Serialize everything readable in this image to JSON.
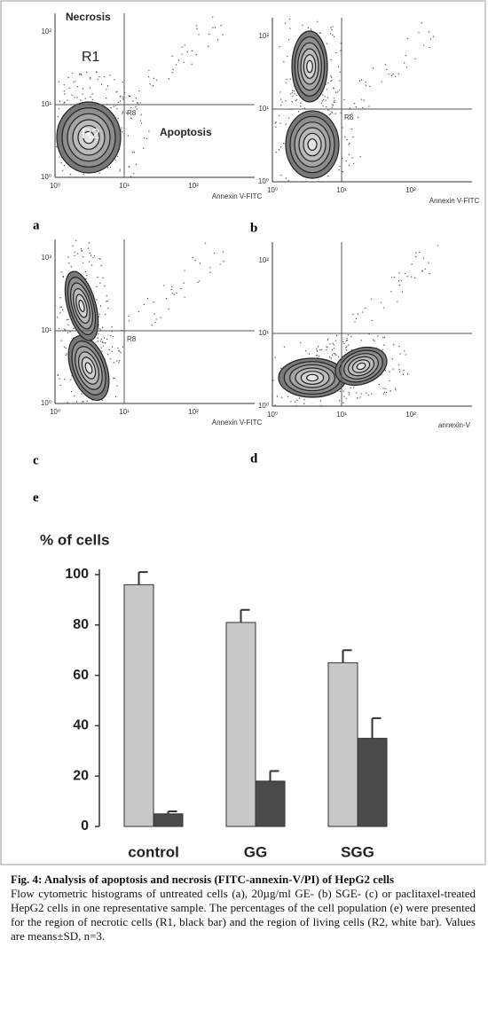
{
  "panels": [
    {
      "letter": "a",
      "x_label": "Annexin V-FITC",
      "gate": "R8",
      "x_ticks": [
        "10⁰",
        "10¹",
        "10²"
      ],
      "y_ticks": [
        "10⁰",
        "10¹",
        "10²"
      ],
      "labels": [
        "Necrosis",
        "R1",
        "R2",
        "Apoptosis"
      ]
    },
    {
      "letter": "b",
      "x_label": "Annexin V-FITC",
      "gate": "R8",
      "x_ticks": [
        "10⁰",
        "10¹",
        "10²"
      ],
      "y_ticks": [
        "10⁰",
        "10¹",
        "10²"
      ]
    },
    {
      "letter": "c",
      "x_label": "Annexin V-FITC",
      "gate": "R8",
      "x_ticks": [
        "10⁰",
        "10¹",
        "10²"
      ],
      "y_ticks": [
        "10⁰",
        "10¹",
        "10²"
      ]
    },
    {
      "letter": "d",
      "x_label": "annexin-V",
      "x_ticks": [
        "10⁰",
        "10¹",
        "10²"
      ],
      "y_ticks": [
        "10⁰",
        "10¹",
        "10²"
      ]
    }
  ],
  "chart_letter": "e",
  "chart_data": {
    "type": "bar",
    "y_label": "% of cells",
    "categories": [
      "control",
      "GG",
      "SGG"
    ],
    "series": [
      {
        "color": "#c8c8c8",
        "values": [
          96,
          81,
          65
        ],
        "errors": [
          5,
          5,
          5
        ]
      },
      {
        "color": "#4a4a4a",
        "values": [
          5,
          18,
          35
        ],
        "errors": [
          1,
          4,
          8
        ]
      }
    ],
    "ylim": [
      0,
      100
    ],
    "yticks": [
      0,
      20,
      40,
      60,
      80,
      100
    ]
  },
  "caption": {
    "title": "Fig. 4: Analysis of apoptosis and necrosis (FITC-annexin-V/PI) of HepG2 cells",
    "text": "Flow cytometric histograms of untreated cells (a), 20µg/ml GE- (b) SGE- (c) or paclitaxel-treated HepG2 cells in one representative sample. The percentages of the cell population (e) were presented for the region of necrotic cells (R1, black bar) and the region of living cells (R2, white bar). Values are means±SD, n=3."
  }
}
